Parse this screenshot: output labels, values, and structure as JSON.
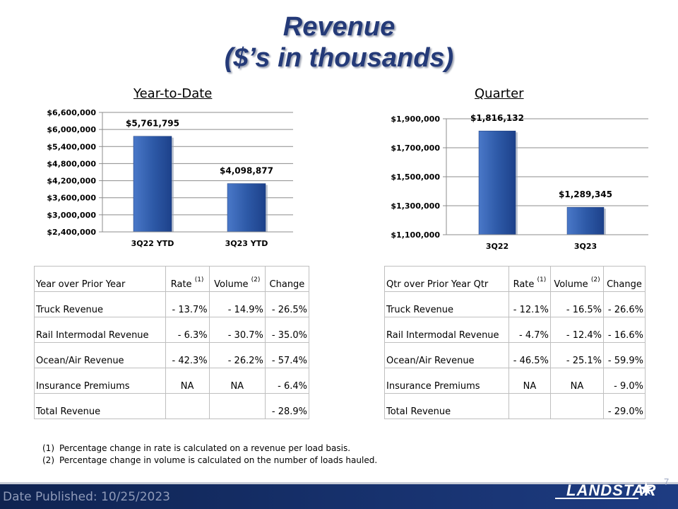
{
  "title": {
    "line1": "Revenue",
    "line2": "($’s in thousands)"
  },
  "chart_data": [
    {
      "type": "bar",
      "title": "Year-to-Date",
      "categories": [
        "3Q22 YTD",
        "3Q23 YTD"
      ],
      "values": [
        5761795,
        4098877
      ],
      "value_labels": [
        "$5,761,795",
        "$4,098,877"
      ],
      "ylim": [
        2400000,
        6600000
      ],
      "yticks": [
        2400000,
        3000000,
        3600000,
        4200000,
        4800000,
        5400000,
        6000000,
        6600000
      ],
      "ytick_labels": [
        "$2,400,000",
        "$3,000,000",
        "$3,600,000",
        "$4,200,000",
        "$4,800,000",
        "$5,400,000",
        "$6,000,000",
        "$6,600,000"
      ],
      "grid": true,
      "bar_color": "#2e5aa8"
    },
    {
      "type": "bar",
      "title": "Quarter",
      "categories": [
        "3Q22",
        "3Q23"
      ],
      "values": [
        1816132,
        1289345
      ],
      "value_labels": [
        "$1,816,132",
        "$1,289,345"
      ],
      "ylim": [
        1100000,
        1900000
      ],
      "yticks": [
        1100000,
        1300000,
        1500000,
        1700000,
        1900000
      ],
      "ytick_labels": [
        "$1,100,000",
        "$1,300,000",
        "$1,500,000",
        "$1,700,000",
        "$1,900,000"
      ],
      "grid": true,
      "bar_color": "#2e5aa8"
    }
  ],
  "ytd_table": {
    "header": {
      "label": "Year over Prior Year",
      "rate": "Rate",
      "rate_note": "(1)",
      "volume": "Volume",
      "volume_note": "(2)",
      "change": "Change"
    },
    "rows": [
      {
        "label": "Truck Revenue",
        "rate": "- 13.7%",
        "volume": "- 14.9%",
        "change": "- 26.5%"
      },
      {
        "label": "Rail Intermodal Revenue",
        "rate": "- 6.3%",
        "volume": "- 30.7%",
        "change": "- 35.0%"
      },
      {
        "label": "Ocean/Air Revenue",
        "rate": "- 42.3%",
        "volume": "- 26.2%",
        "change": "- 57.4%"
      },
      {
        "label": "Insurance Premiums",
        "rate": "NA",
        "volume": "NA",
        "change": "- 6.4%"
      },
      {
        "label": "Total Revenue",
        "rate": "",
        "volume": "",
        "change": "- 28.9%"
      }
    ]
  },
  "qtr_table": {
    "header": {
      "label": "Qtr over Prior Year Qtr",
      "rate": "Rate",
      "rate_note": "(1)",
      "volume": "Volume",
      "volume_note": "(2)",
      "change": "Change"
    },
    "rows": [
      {
        "label": "Truck Revenue",
        "rate": "- 12.1%",
        "volume": "- 16.5%",
        "change": "- 26.6%"
      },
      {
        "label": "Rail Intermodal Revenue",
        "rate": "- 4.7%",
        "volume": "- 12.4%",
        "change": "- 16.6%"
      },
      {
        "label": "Ocean/Air Revenue",
        "rate": "- 46.5%",
        "volume": "- 25.1%",
        "change": "- 59.9%"
      },
      {
        "label": "Insurance Premiums",
        "rate": "NA",
        "volume": "NA",
        "change": "- 9.0%"
      },
      {
        "label": "Total Revenue",
        "rate": "",
        "volume": "",
        "change": "- 29.0%"
      }
    ]
  },
  "footnotes": [
    {
      "num": "(1)",
      "text": "Percentage change in rate is calculated on a revenue per load basis."
    },
    {
      "num": "(2)",
      "text": "Percentage change in volume is calculated on the number of loads hauled."
    }
  ],
  "footer": {
    "published": "Date Published:  10/25/2023",
    "page": "7",
    "logo": "LANDSTAR"
  },
  "colors": {
    "title": "#243a78",
    "bar": "#2e5aa8",
    "footer": "#16306b"
  }
}
